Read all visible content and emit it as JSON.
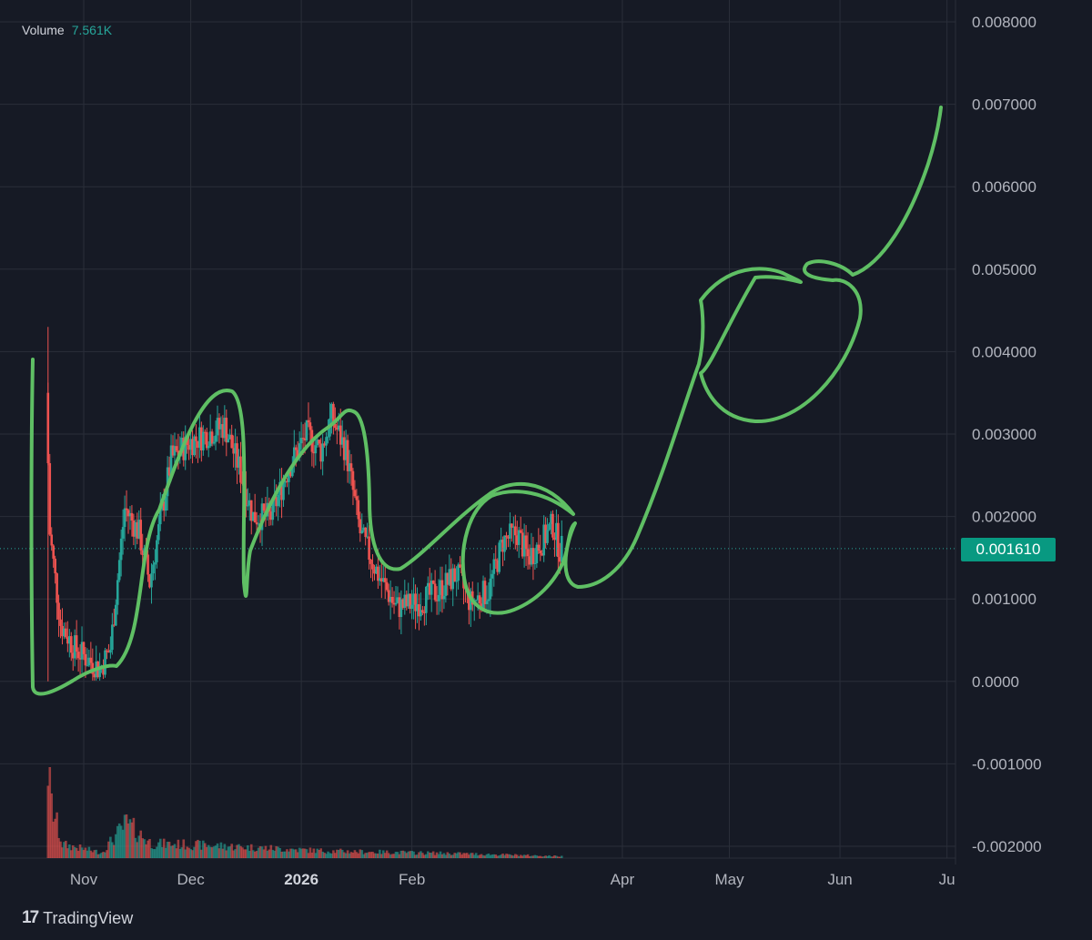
{
  "volume": {
    "label": "Volume",
    "value": "7.561K"
  },
  "last_price": "0.001610",
  "branding": {
    "logo": "TradingView"
  },
  "colors": {
    "up": "#26a69a",
    "down": "#ef5350",
    "background": "#161a25",
    "drawing": "#5fbf64",
    "grid": "#2a2e39"
  },
  "chart_data": {
    "type": "candlestick",
    "y_ticks": [
      "0.008000",
      "0.007000",
      "0.006000",
      "0.005000",
      "0.004000",
      "0.003000",
      "0.002000",
      "0.001000",
      "0.0000",
      "-0.001000",
      "-0.002000"
    ],
    "y_tick_values": [
      0.008,
      0.007,
      0.006,
      0.005,
      0.004,
      0.003,
      0.002,
      0.001,
      0.0,
      -0.001,
      -0.002
    ],
    "x_ticks": [
      "Nov",
      "Dec",
      "2026",
      "Feb",
      "Apr",
      "May",
      "Jun",
      "Ju"
    ],
    "ylim": [
      -0.002,
      0.008
    ],
    "last_price": 0.00161,
    "grid": true,
    "price_waypoints": [
      {
        "date": "2025-10-22",
        "price": 0.0035
      },
      {
        "date": "2025-10-23",
        "price": 0.0018
      },
      {
        "date": "2025-10-26",
        "price": 0.0007
      },
      {
        "date": "2025-10-30",
        "price": 0.0004
      },
      {
        "date": "2025-11-06",
        "price": 0.00015
      },
      {
        "date": "2025-11-09",
        "price": 0.0004
      },
      {
        "date": "2025-11-13",
        "price": 0.0021
      },
      {
        "date": "2025-11-17",
        "price": 0.0018
      },
      {
        "date": "2025-11-20",
        "price": 0.0012
      },
      {
        "date": "2025-11-26",
        "price": 0.0027
      },
      {
        "date": "2025-12-01",
        "price": 0.0029
      },
      {
        "date": "2025-12-06",
        "price": 0.003
      },
      {
        "date": "2025-12-11",
        "price": 0.0031
      },
      {
        "date": "2025-12-15",
        "price": 0.0026
      },
      {
        "date": "2025-12-19",
        "price": 0.002
      },
      {
        "date": "2025-12-24",
        "price": 0.002
      },
      {
        "date": "2025-12-29",
        "price": 0.0026
      },
      {
        "date": "2026-01-03",
        "price": 0.003
      },
      {
        "date": "2026-01-07",
        "price": 0.0028
      },
      {
        "date": "2026-01-10",
        "price": 0.0032
      },
      {
        "date": "2026-01-14",
        "price": 0.0028
      },
      {
        "date": "2026-01-18",
        "price": 0.0018
      },
      {
        "date": "2026-01-23",
        "price": 0.0013
      },
      {
        "date": "2026-01-28",
        "price": 0.0009
      },
      {
        "date": "2026-02-03",
        "price": 0.00095
      },
      {
        "date": "2026-02-09",
        "price": 0.0011
      },
      {
        "date": "2026-02-14",
        "price": 0.0013
      },
      {
        "date": "2026-02-18",
        "price": 0.00095
      },
      {
        "date": "2026-02-23",
        "price": 0.0011
      },
      {
        "date": "2026-02-27",
        "price": 0.0017
      },
      {
        "date": "2026-03-03",
        "price": 0.0018
      },
      {
        "date": "2026-03-06",
        "price": 0.0015
      },
      {
        "date": "2026-03-10",
        "price": 0.0017
      },
      {
        "date": "2026-03-13",
        "price": 0.0019
      },
      {
        "date": "2026-03-15",
        "price": 0.0016
      }
    ],
    "volume_waypoints": [
      {
        "date": "2025-10-22",
        "volume": 1.0
      },
      {
        "date": "2025-10-23",
        "volume": 0.58
      },
      {
        "date": "2025-10-26",
        "volume": 0.15
      },
      {
        "date": "2025-11-06",
        "volume": 0.06
      },
      {
        "date": "2025-11-13",
        "volume": 0.38
      },
      {
        "date": "2025-11-20",
        "volume": 0.16
      },
      {
        "date": "2025-12-06",
        "volume": 0.14
      },
      {
        "date": "2026-01-07",
        "volume": 0.08
      },
      {
        "date": "2026-01-18",
        "volume": 0.07
      },
      {
        "date": "2026-02-14",
        "volume": 0.05
      },
      {
        "date": "2026-03-15",
        "volume": 0.02
      }
    ]
  }
}
